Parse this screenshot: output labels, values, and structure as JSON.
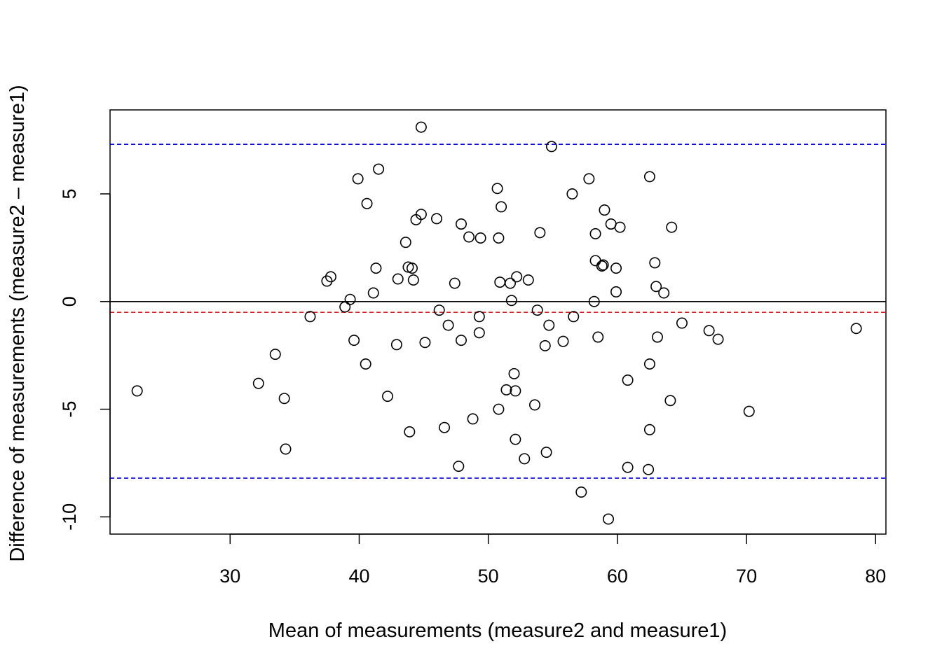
{
  "chart_data": {
    "type": "scatter",
    "title": "",
    "xlabel": "Mean of measurements (measure2 and measure1)",
    "ylabel": "Difference of measurements (measure2 – measure1)",
    "xlim": [
      20.7,
      80.8
    ],
    "ylim": [
      -10.8,
      8.9
    ],
    "x_ticks": [
      30,
      40,
      50,
      60,
      70,
      80
    ],
    "x_tick_labels": [
      "30",
      "40",
      "50",
      "60",
      "70",
      "80"
    ],
    "y_ticks": [
      -10,
      -5,
      0,
      5
    ],
    "y_tick_labels": [
      "-10",
      "-5",
      "0",
      "5"
    ],
    "reference_lines": [
      {
        "name": "zero-line",
        "y": 0,
        "color": "#000000",
        "style": "solid"
      },
      {
        "name": "mean-difference-line",
        "y": -0.5,
        "color": "#e41a1c",
        "style": "dashed"
      },
      {
        "name": "upper-limit-line",
        "y": 7.3,
        "color": "#0000ff",
        "style": "dashed"
      },
      {
        "name": "lower-limit-line",
        "y": -8.2,
        "color": "#0000ff",
        "style": "dashed"
      }
    ],
    "points": [
      [
        22.8,
        -4.15
      ],
      [
        32.2,
        -3.8
      ],
      [
        33.5,
        -2.45
      ],
      [
        34.2,
        -4.5
      ],
      [
        34.3,
        -6.85
      ],
      [
        36.2,
        -0.7
      ],
      [
        37.5,
        0.95
      ],
      [
        37.8,
        1.15
      ],
      [
        38.9,
        -0.25
      ],
      [
        39.3,
        0.1
      ],
      [
        39.6,
        -1.8
      ],
      [
        39.9,
        5.7
      ],
      [
        40.5,
        -2.9
      ],
      [
        40.6,
        4.55
      ],
      [
        41.1,
        0.4
      ],
      [
        41.3,
        1.55
      ],
      [
        41.5,
        6.15
      ],
      [
        42.2,
        -4.4
      ],
      [
        42.9,
        -2.0
      ],
      [
        43.0,
        1.05
      ],
      [
        43.6,
        2.75
      ],
      [
        43.8,
        1.6
      ],
      [
        43.9,
        -6.05
      ],
      [
        44.1,
        1.55
      ],
      [
        44.2,
        1.0
      ],
      [
        44.4,
        3.8
      ],
      [
        44.8,
        4.05
      ],
      [
        44.8,
        8.1
      ],
      [
        45.1,
        -1.9
      ],
      [
        46.0,
        3.85
      ],
      [
        46.2,
        -0.4
      ],
      [
        46.6,
        -5.85
      ],
      [
        46.9,
        -1.1
      ],
      [
        47.4,
        0.85
      ],
      [
        47.7,
        -7.65
      ],
      [
        47.9,
        -1.8
      ],
      [
        47.9,
        3.6
      ],
      [
        48.5,
        3.0
      ],
      [
        48.8,
        -5.45
      ],
      [
        49.3,
        -0.7
      ],
      [
        49.3,
        -1.45
      ],
      [
        49.4,
        2.95
      ],
      [
        50.7,
        5.25
      ],
      [
        50.8,
        -5.0
      ],
      [
        50.8,
        2.95
      ],
      [
        50.9,
        0.9
      ],
      [
        51.0,
        4.4
      ],
      [
        51.4,
        -4.1
      ],
      [
        51.7,
        0.85
      ],
      [
        51.8,
        0.05
      ],
      [
        52.0,
        -3.35
      ],
      [
        52.1,
        -6.4
      ],
      [
        52.1,
        -4.15
      ],
      [
        52.2,
        1.15
      ],
      [
        52.8,
        -7.3
      ],
      [
        53.1,
        1.0
      ],
      [
        53.6,
        -4.8
      ],
      [
        53.8,
        -0.4
      ],
      [
        54.0,
        3.2
      ],
      [
        54.4,
        -2.05
      ],
      [
        54.5,
        -7.0
      ],
      [
        54.7,
        -1.1
      ],
      [
        54.9,
        7.2
      ],
      [
        55.8,
        -1.85
      ],
      [
        56.5,
        5.0
      ],
      [
        56.6,
        -0.7
      ],
      [
        57.2,
        -8.85
      ],
      [
        57.8,
        5.7
      ],
      [
        58.2,
        0.0
      ],
      [
        58.3,
        1.9
      ],
      [
        58.3,
        3.15
      ],
      [
        58.5,
        -1.65
      ],
      [
        58.8,
        1.65
      ],
      [
        58.9,
        1.7
      ],
      [
        59.0,
        4.25
      ],
      [
        59.3,
        -10.1
      ],
      [
        59.5,
        3.6
      ],
      [
        59.9,
        1.55
      ],
      [
        59.9,
        0.45
      ],
      [
        60.2,
        3.45
      ],
      [
        60.8,
        -7.7
      ],
      [
        60.8,
        -3.65
      ],
      [
        62.4,
        -7.8
      ],
      [
        62.5,
        -5.95
      ],
      [
        62.5,
        -2.9
      ],
      [
        62.5,
        5.8
      ],
      [
        62.9,
        1.8
      ],
      [
        63.0,
        0.7
      ],
      [
        63.1,
        -1.65
      ],
      [
        63.6,
        0.4
      ],
      [
        64.1,
        -4.6
      ],
      [
        64.2,
        3.45
      ],
      [
        65.0,
        -1.0
      ],
      [
        67.1,
        -1.35
      ],
      [
        67.8,
        -1.75
      ],
      [
        70.2,
        -5.1
      ],
      [
        78.5,
        -1.25
      ]
    ]
  }
}
